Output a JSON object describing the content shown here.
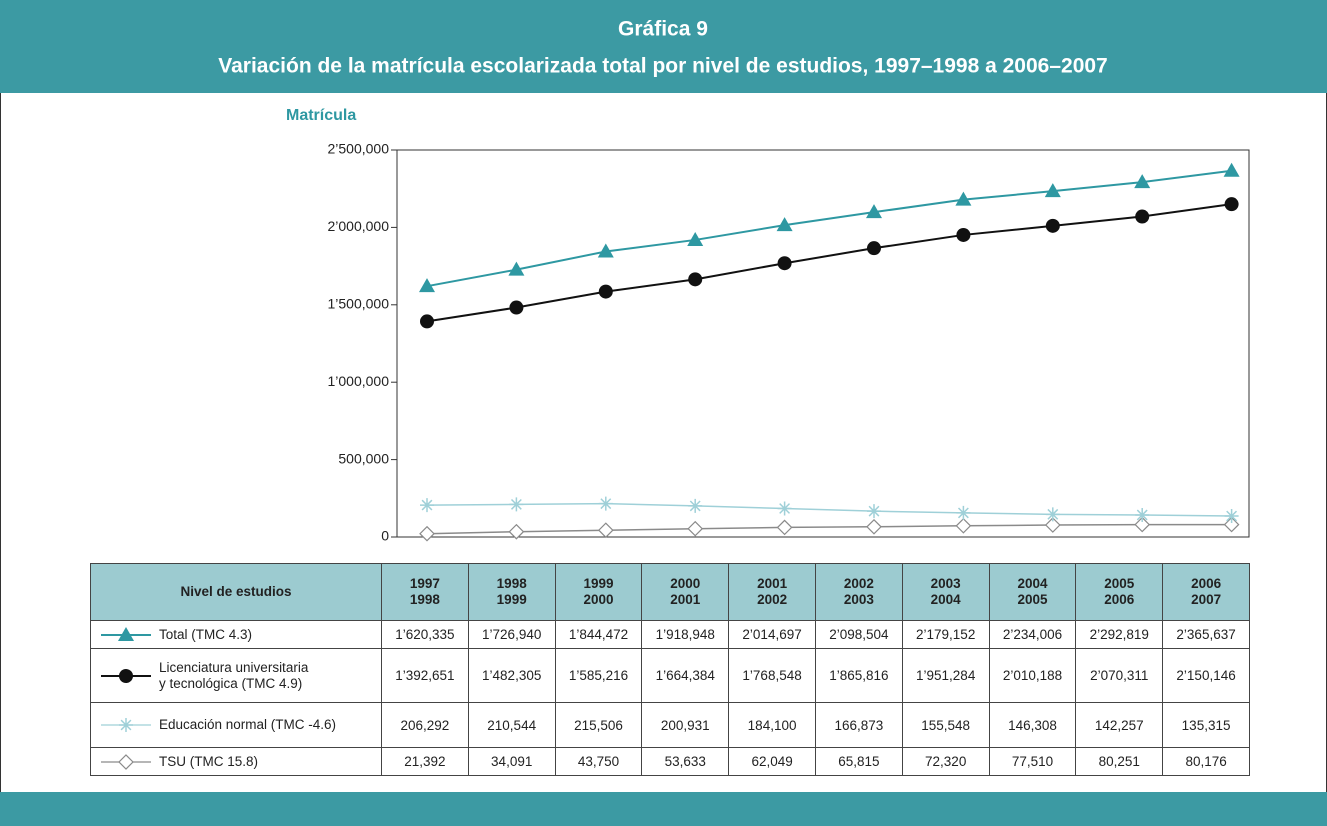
{
  "chart_data": {
    "type": "line",
    "title": "Gráfica 9",
    "subtitle": "Variación de la matrícula escolarizada total por nivel de estudios, 1997–1998 a 2006–2007",
    "y_label": "Matrícula",
    "table_header": "Nivel de estudios",
    "categories": [
      "1997\n1998",
      "1998\n1999",
      "1999\n2000",
      "2000\n2001",
      "2001\n2002",
      "2002\n2003",
      "2003\n2004",
      "2004\n2005",
      "2005\n2006",
      "2006\n2007"
    ],
    "ylim": [
      0,
      2500000
    ],
    "yticks": [
      0,
      {
        "value": 500000,
        "label": "500,000"
      },
      {
        "value": 1000000,
        "label": "1’000,000"
      },
      {
        "value": 1500000,
        "label": "1’500,000"
      },
      {
        "value": 2000000,
        "label": "2’000,000"
      },
      {
        "value": 2500000,
        "label": "2’500,000"
      }
    ],
    "series": [
      {
        "name": "Total (TMC 4.3)",
        "color": "#2e98a2",
        "marker": "triangle",
        "values": [
          1620335,
          1726940,
          1844472,
          1918948,
          2014697,
          2098504,
          2179152,
          2234006,
          2292819,
          2365637
        ],
        "value_labels": [
          "1’620,335",
          "1’726,940",
          "1’844,472",
          "1’918,948",
          "2’014,697",
          "2’098,504",
          "2’179,152",
          "2’234,006",
          "2’292,819",
          "2’365,637"
        ]
      },
      {
        "name": "Licenciatura universitaria\ny tecnológica (TMC 4.9)",
        "color": "#111111",
        "marker": "circle",
        "values": [
          1392651,
          1482305,
          1585216,
          1664384,
          1768548,
          1865816,
          1951284,
          2010188,
          2070311,
          2150146
        ],
        "value_labels": [
          "1’392,651",
          "1’482,305",
          "1’585,216",
          "1’664,384",
          "1’768,548",
          "1’865,816",
          "1’951,284",
          "2’010,188",
          "2’070,311",
          "2’150,146"
        ]
      },
      {
        "name": "Educación normal (TMC -4.6)",
        "color": "#9fd0d8",
        "marker": "asterisk",
        "values": [
          206292,
          210544,
          215506,
          200931,
          184100,
          166873,
          155548,
          146308,
          142257,
          135315
        ],
        "value_labels": [
          "206,292",
          "210,544",
          "215,506",
          "200,931",
          "184,100",
          "166,873",
          "155,548",
          "146,308",
          "142,257",
          "135,315"
        ]
      },
      {
        "name": "TSU (TMC 15.8)",
        "color": "#8a8a8a",
        "marker": "diamond",
        "values": [
          21392,
          34091,
          43750,
          53633,
          62049,
          65815,
          72320,
          77510,
          80251,
          80176
        ],
        "value_labels": [
          "21,392",
          "34,091",
          "43,750",
          "53,633",
          "62,049",
          "65,815",
          "72,320",
          "77,510",
          "80,251",
          "80,176"
        ]
      }
    ]
  }
}
